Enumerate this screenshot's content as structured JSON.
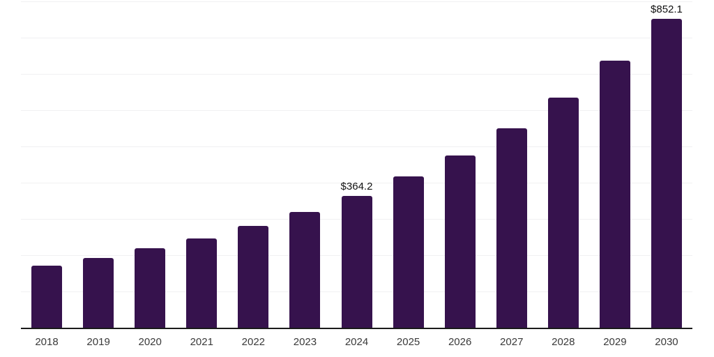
{
  "chart_data": {
    "type": "bar",
    "title": "",
    "xlabel": "",
    "ylabel": "",
    "categories": [
      "2018",
      "2019",
      "2020",
      "2021",
      "2022",
      "2023",
      "2024",
      "2025",
      "2026",
      "2027",
      "2028",
      "2029",
      "2030"
    ],
    "values": [
      171.4,
      192.0,
      218.9,
      245.6,
      280.3,
      318.9,
      364.2,
      418.3,
      476.0,
      549.9,
      635.2,
      736.6,
      852.1
    ],
    "data_labels": {
      "2024": "$364.2",
      "2030": "$852.1"
    },
    "ylim": [
      0,
      905
    ],
    "gridline_values": [
      100,
      200,
      300,
      400,
      500,
      600,
      700,
      800,
      900
    ],
    "grid": "horizontal-only",
    "legend": "none",
    "colors": {
      "bar": "#36124d",
      "axis_line": "#1a1a1a",
      "gridline": "#f0f0f2",
      "tick_label": "#3a3a3a",
      "value_label": "#111111",
      "background": "#ffffff"
    }
  }
}
